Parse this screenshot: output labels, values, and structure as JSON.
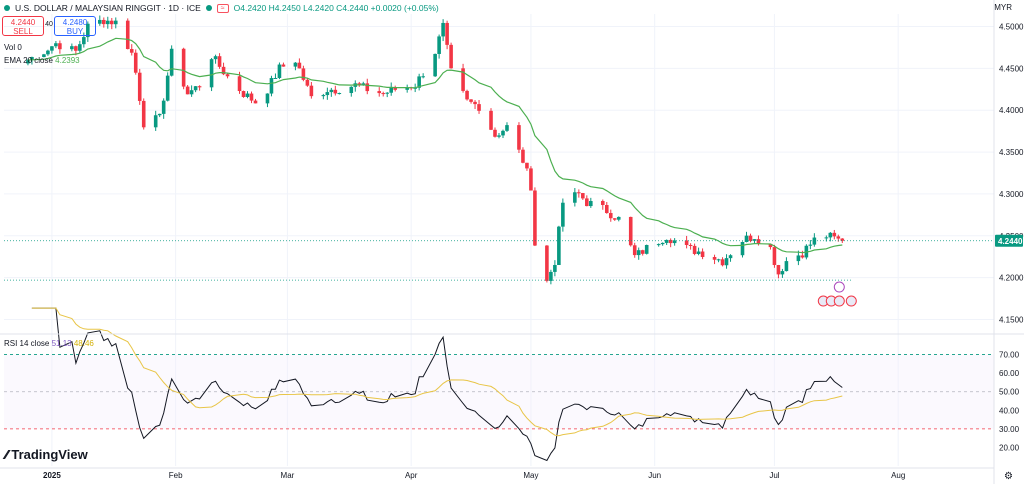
{
  "header": {
    "symbol_title": "U.S. DOLLAR / MALAYSIAN RINGGIT · 1D · ICE",
    "ohlc_text": "O4.2420 H4.2450 L4.2420 C4.2440 +0.0020 (+0.05%)",
    "badge": "≈"
  },
  "trade": {
    "sell_price": "4.2440",
    "sell_label": "SELL",
    "spread": "40",
    "buy_price": "4.2480",
    "buy_label": "BUY"
  },
  "indicators": {
    "volume_label": "Vol",
    "volume_value": "0",
    "ema_label": "EMA 20 close",
    "ema_value": "4.2393",
    "rsi_label": "RSI 14 close",
    "rsi_value": "51.13",
    "rsi_ma_value": "48.46"
  },
  "axis": {
    "currency": "MYR"
  },
  "logo_text": "TradingView",
  "colors": {
    "up": "#089981",
    "down": "#f23645",
    "ema": "#4caf50",
    "rsi": "#131722",
    "rsi_ma": "#e8c547",
    "last_price_bg": "#089981"
  },
  "chart_data": [
    {
      "type": "candlestick",
      "x_ticks": [
        {
          "label": "2025",
          "date": "2025-01-01"
        },
        {
          "label": "Feb",
          "date": "2025-02-01"
        },
        {
          "label": "Mar",
          "date": "2025-03-01"
        },
        {
          "label": "Apr",
          "date": "2025-04-01"
        },
        {
          "label": "May",
          "date": "2025-05-01"
        },
        {
          "label": "Jun",
          "date": "2025-06-01"
        },
        {
          "label": "Jul",
          "date": "2025-07-01"
        },
        {
          "label": "Aug",
          "date": "2025-08-01"
        }
      ],
      "y_ticks": [
        4.15,
        4.2,
        4.25,
        4.3,
        4.35,
        4.4,
        4.45,
        4.5
      ],
      "y_tick_labels": [
        "4.1500",
        "4.2000",
        "4.2500",
        "4.3000",
        "4.3500",
        "4.4000",
        "4.4500",
        "4.5000"
      ],
      "ylim": [
        4.135,
        4.515
      ],
      "last_price": 4.244,
      "last_price_label": "4.2440",
      "dotted_level": 4.197,
      "anchors": [
        {
          "date": "2024-12-26",
          "close": 4.46
        },
        {
          "date": "2025-01-02",
          "close": 4.48
        },
        {
          "date": "2025-01-07",
          "close": 4.47
        },
        {
          "date": "2025-01-10",
          "close": 4.5
        },
        {
          "date": "2025-01-14",
          "close": 4.508
        },
        {
          "date": "2025-01-17",
          "close": 4.505
        },
        {
          "date": "2025-01-21",
          "close": 4.468
        },
        {
          "date": "2025-01-22",
          "close": 4.445
        },
        {
          "date": "2025-01-24",
          "close": 4.385
        },
        {
          "date": "2025-01-28",
          "close": 4.39
        },
        {
          "date": "2025-01-31",
          "close": 4.468
        },
        {
          "date": "2025-02-04",
          "close": 4.42
        },
        {
          "date": "2025-02-07",
          "close": 4.43
        },
        {
          "date": "2025-02-10",
          "close": 4.465
        },
        {
          "date": "2025-02-14",
          "close": 4.44
        },
        {
          "date": "2025-02-18",
          "close": 4.42
        },
        {
          "date": "2025-02-21",
          "close": 4.41
        },
        {
          "date": "2025-02-24",
          "close": 4.425
        },
        {
          "date": "2025-02-27",
          "close": 4.45
        },
        {
          "date": "2025-03-03",
          "close": 4.46
        },
        {
          "date": "2025-03-07",
          "close": 4.415
        },
        {
          "date": "2025-03-11",
          "close": 4.425
        },
        {
          "date": "2025-03-13",
          "close": 4.425
        },
        {
          "date": "2025-03-18",
          "close": 4.43
        },
        {
          "date": "2025-03-21",
          "close": 4.425
        },
        {
          "date": "2025-03-25",
          "close": 4.42
        },
        {
          "date": "2025-03-28",
          "close": 4.425
        },
        {
          "date": "2025-04-02",
          "close": 4.43
        },
        {
          "date": "2025-04-04",
          "close": 4.445
        },
        {
          "date": "2025-04-07",
          "close": 4.47
        },
        {
          "date": "2025-04-09",
          "close": 4.5
        },
        {
          "date": "2025-04-11",
          "close": 4.445
        },
        {
          "date": "2025-04-15",
          "close": 4.41
        },
        {
          "date": "2025-04-18",
          "close": 4.405
        },
        {
          "date": "2025-04-22",
          "close": 4.37
        },
        {
          "date": "2025-04-25",
          "close": 4.38
        },
        {
          "date": "2025-04-29",
          "close": 4.34
        },
        {
          "date": "2025-05-01",
          "close": 4.31
        },
        {
          "date": "2025-05-02",
          "close": 4.24
        },
        {
          "date": "2025-05-05",
          "close": 4.195
        },
        {
          "date": "2025-05-07",
          "close": 4.22
        },
        {
          "date": "2025-05-09",
          "close": 4.29
        },
        {
          "date": "2025-05-13",
          "close": 4.3
        },
        {
          "date": "2025-05-15",
          "close": 4.29
        },
        {
          "date": "2025-05-20",
          "close": 4.28
        },
        {
          "date": "2025-05-23",
          "close": 4.27
        },
        {
          "date": "2025-05-27",
          "close": 4.225
        },
        {
          "date": "2025-05-30",
          "close": 4.235
        },
        {
          "date": "2025-06-04",
          "close": 4.25
        },
        {
          "date": "2025-06-09",
          "close": 4.235
        },
        {
          "date": "2025-06-13",
          "close": 4.23
        },
        {
          "date": "2025-06-18",
          "close": 4.22
        },
        {
          "date": "2025-06-23",
          "close": 4.245
        },
        {
          "date": "2025-06-26",
          "close": 4.25
        },
        {
          "date": "2025-06-30",
          "close": 4.235
        },
        {
          "date": "2025-07-02",
          "close": 4.205
        },
        {
          "date": "2025-07-04",
          "close": 4.22
        },
        {
          "date": "2025-07-08",
          "close": 4.23
        },
        {
          "date": "2025-07-11",
          "close": 4.245
        },
        {
          "date": "2025-07-14",
          "close": 4.25
        },
        {
          "date": "2025-07-17",
          "close": 4.245
        },
        {
          "date": "2025-07-18",
          "close": 4.244
        }
      ]
    },
    {
      "type": "line",
      "series": [
        {
          "name": "RSI 14 close"
        },
        {
          "name": "RSI MA"
        }
      ],
      "y_ticks": [
        20,
        30,
        40,
        50,
        60,
        70
      ],
      "y_tick_labels": [
        "20.00",
        "30.00",
        "40.00",
        "50.00",
        "60.00",
        "70.00"
      ],
      "ylim": [
        10,
        80
      ],
      "bands": [
        30,
        50,
        70
      ]
    }
  ]
}
